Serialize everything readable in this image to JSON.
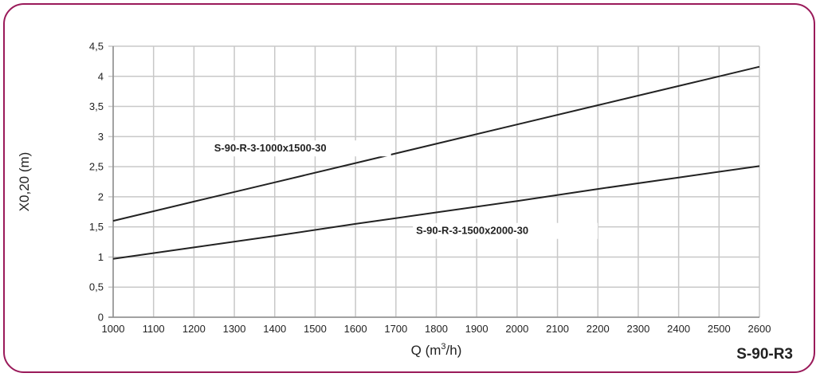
{
  "badge": "S-90-R3",
  "chart_data": {
    "type": "line",
    "title": "",
    "xlabel": "Q (m³/h)",
    "ylabel": "X0,20 (m)",
    "xlim": [
      1000,
      2600
    ],
    "ylim": [
      0,
      4.5
    ],
    "x_ticks": [
      1000,
      1100,
      1200,
      1300,
      1400,
      1500,
      1600,
      1700,
      1800,
      1900,
      2000,
      2100,
      2200,
      2300,
      2400,
      2500,
      2600
    ],
    "y_ticks": [
      0,
      0.5,
      1,
      1.5,
      2,
      2.5,
      3,
      3.5,
      4,
      4.5
    ],
    "y_tick_labels": [
      "0",
      "0,5",
      "1",
      "1,5",
      "2",
      "2,5",
      "3",
      "3,5",
      "4",
      "4,5"
    ],
    "grid": true,
    "series": [
      {
        "name": "S-90-R-3-1000x1500-30",
        "color": "#222222",
        "x": [
          1000,
          1200,
          1400,
          1600,
          1800,
          2000,
          2200,
          2400,
          2600
        ],
        "y": [
          1.6,
          1.92,
          2.24,
          2.56,
          2.88,
          3.2,
          3.52,
          3.84,
          4.16
        ]
      },
      {
        "name": "S-90-R-3-1500x2000-30",
        "color": "#222222",
        "x": [
          1000,
          1200,
          1400,
          1600,
          1800,
          2000,
          2200,
          2400,
          2600
        ],
        "y": [
          0.97,
          1.16,
          1.35,
          1.55,
          1.74,
          1.93,
          2.13,
          2.32,
          2.51
        ]
      }
    ],
    "grid_color": "#c8c8c8",
    "frame_color": "#9a1a5a"
  }
}
